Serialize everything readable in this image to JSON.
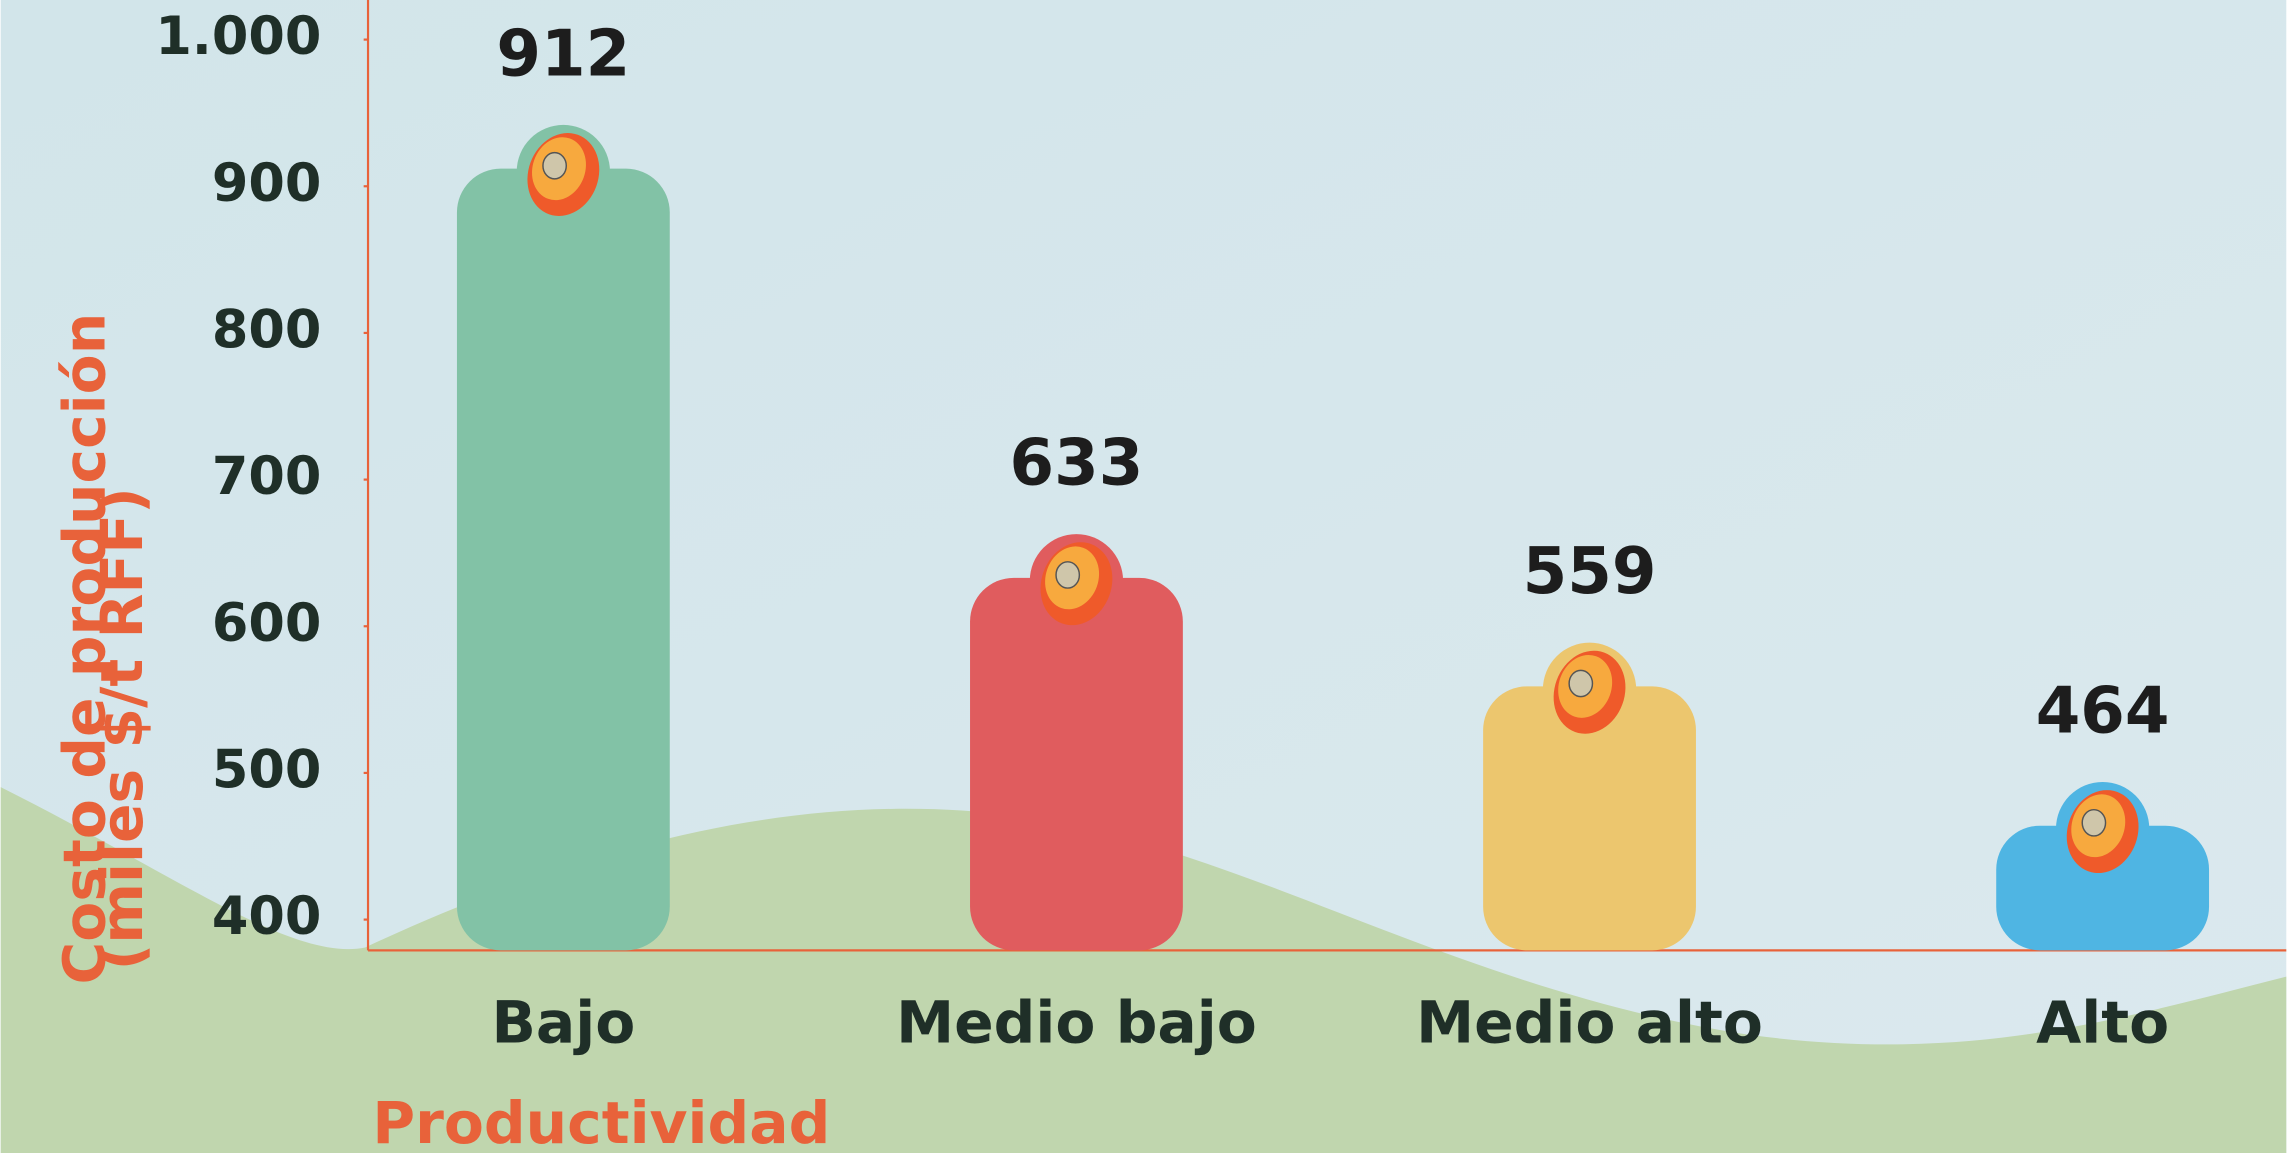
{
  "chart_data": {
    "type": "bar",
    "ylabel": [
      "Costo de producción",
      "(miles $/t RFF)"
    ],
    "xlabel": "Productividad",
    "categories": [
      "Bajo",
      "Medio bajo",
      "Medio alto",
      "Alto"
    ],
    "values": [
      912,
      633,
      559,
      464
    ],
    "colors": [
      "#82c2a6",
      "#e05c5e",
      "#ecc66e",
      "#4fb5e3"
    ],
    "ylim": [
      379,
      1027
    ],
    "yticks": [
      400,
      500,
      600,
      700,
      800,
      900,
      {
        "value": 1000,
        "label": "1.000"
      }
    ],
    "axis_color": "#e8623a"
  }
}
